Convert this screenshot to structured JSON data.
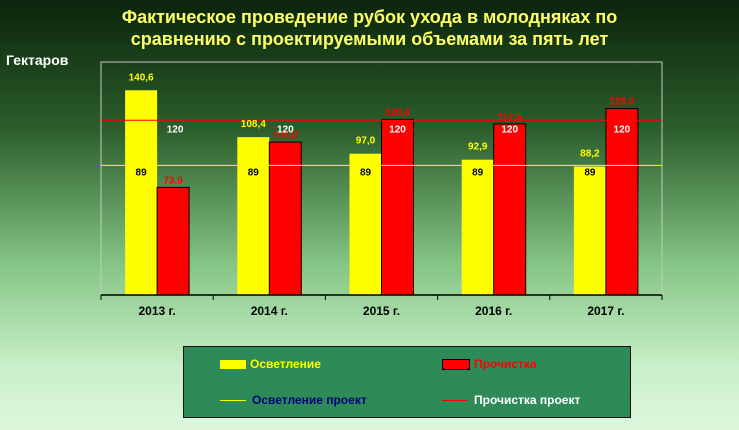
{
  "title_line1": "Фактическое проведение рубок ухода в молодняках по",
  "title_line2": "сравнению с проектируемыми объемами за пять лет",
  "units_label": "Гектаров",
  "colors": {
    "osvetlenie": "#ffff00",
    "prochistka": "#ff0000",
    "osvetlenie_label": "#ffff00",
    "osvetlenie_proekt_label": "#000080",
    "prochistka_label": "#ff0000",
    "prochistka_proekt_label": "#ffffff"
  },
  "chart_data": {
    "type": "bar",
    "categories": [
      "2013 г.",
      "2014 г.",
      "2015 г.",
      "2016 г.",
      "2017 г."
    ],
    "series": [
      {
        "name": "Осветление",
        "values": [
          140.6,
          108.4,
          97.0,
          92.9,
          88.2
        ],
        "labels": [
          "140,6",
          "108,4",
          "97,0",
          "92,9",
          "88,2"
        ]
      },
      {
        "name": "Прочистка",
        "values": [
          73.9,
          105.0,
          120.6,
          117.5,
          128.0
        ],
        "labels": [
          "73,9",
          "105,0",
          "120,6",
          "117,5",
          "128,0"
        ]
      }
    ],
    "lines": [
      {
        "name": "Осветление проект",
        "values": [
          89,
          89,
          89,
          89,
          89
        ],
        "labels": [
          "89",
          "89",
          "89",
          "89",
          "89"
        ]
      },
      {
        "name": "Прочистка проект",
        "values": [
          120,
          120,
          120,
          120,
          120
        ],
        "labels": [
          "120",
          "120",
          "120",
          "120",
          "120"
        ]
      }
    ],
    "ylim": [
      0,
      160
    ],
    "grid": false,
    "legend_position": "bottom"
  }
}
